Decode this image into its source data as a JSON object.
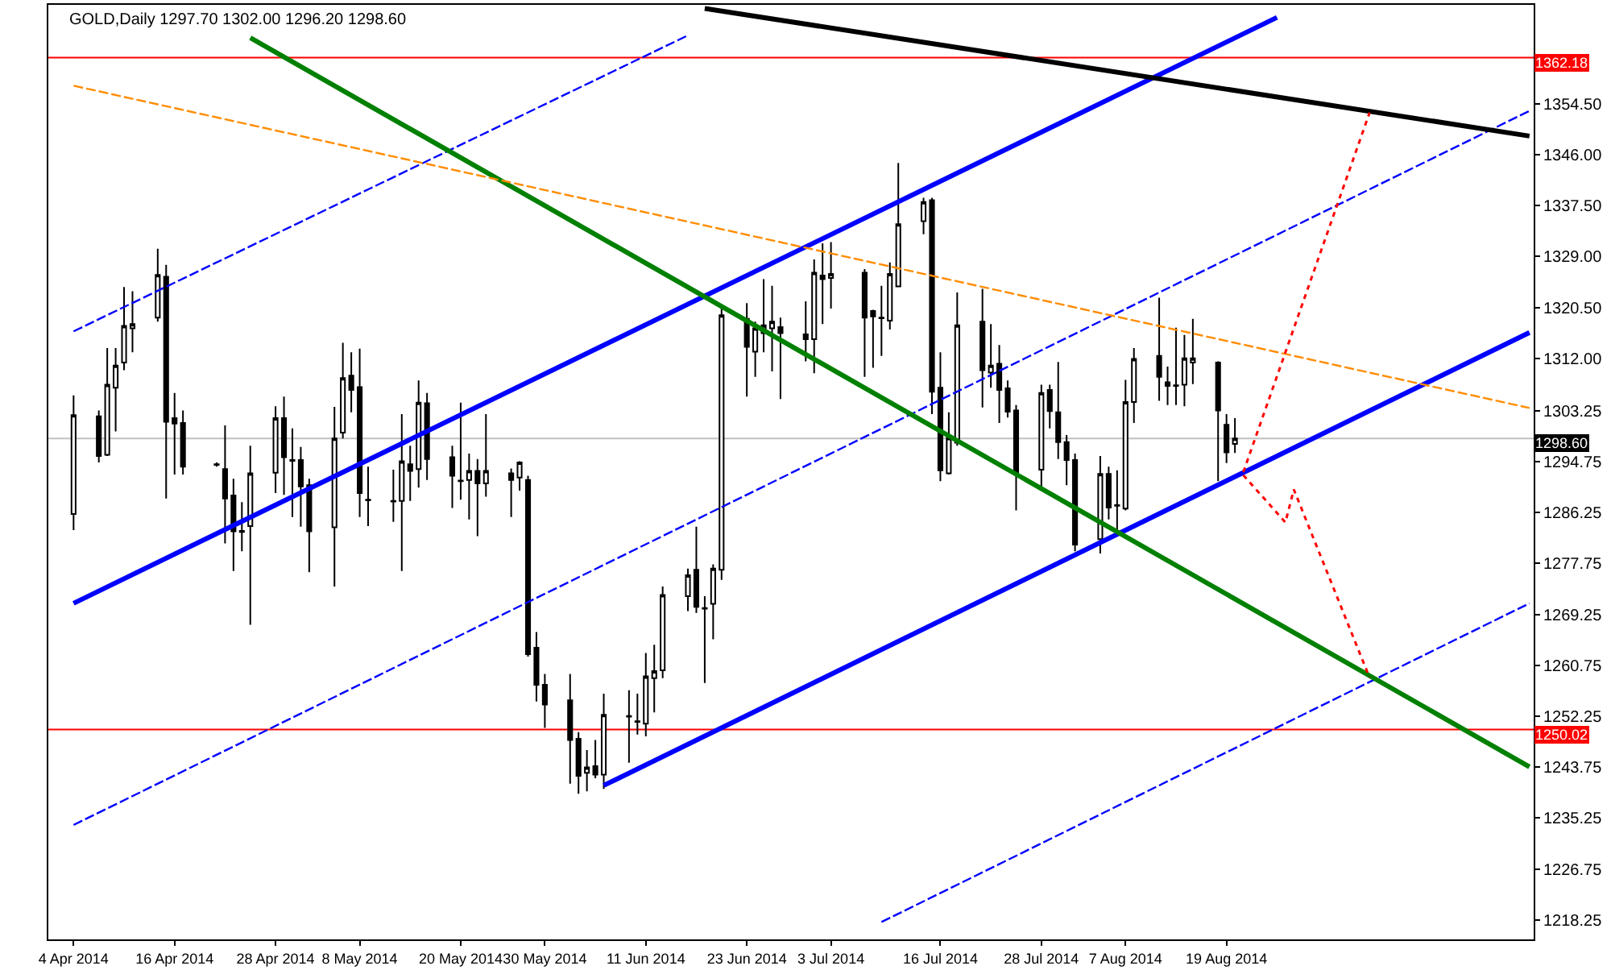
{
  "chart_data": {
    "type": "candlestick",
    "title": "GOLD,Daily 1297.70 1302.00 1296.20 1298.60",
    "x": [
      "2014-04-04",
      "2014-04-07",
      "2014-04-08",
      "2014-04-09",
      "2014-04-10",
      "2014-04-11",
      "2014-04-14",
      "2014-04-15",
      "2014-04-16",
      "2014-04-17",
      "2014-04-21",
      "2014-04-22",
      "2014-04-23",
      "2014-04-24",
      "2014-04-25",
      "2014-04-28",
      "2014-04-29",
      "2014-04-30",
      "2014-05-01",
      "2014-05-02",
      "2014-05-05",
      "2014-05-06",
      "2014-05-07",
      "2014-05-08",
      "2014-05-09",
      "2014-05-12",
      "2014-05-13",
      "2014-05-14",
      "2014-05-15",
      "2014-05-16",
      "2014-05-19",
      "2014-05-20",
      "2014-05-21",
      "2014-05-22",
      "2014-05-23",
      "2014-05-26",
      "2014-05-27",
      "2014-05-28",
      "2014-05-29",
      "2014-05-30",
      "2014-06-02",
      "2014-06-03",
      "2014-06-04",
      "2014-06-05",
      "2014-06-06",
      "2014-06-09",
      "2014-06-10",
      "2014-06-11",
      "2014-06-12",
      "2014-06-13",
      "2014-06-16",
      "2014-06-17",
      "2014-06-18",
      "2014-06-19",
      "2014-06-20",
      "2014-06-23",
      "2014-06-24",
      "2014-06-25",
      "2014-06-26",
      "2014-06-27",
      "2014-06-30",
      "2014-07-01",
      "2014-07-02",
      "2014-07-03",
      "2014-07-07",
      "2014-07-08",
      "2014-07-09",
      "2014-07-10",
      "2014-07-11",
      "2014-07-14",
      "2014-07-15",
      "2014-07-16",
      "2014-07-17",
      "2014-07-18",
      "2014-07-21",
      "2014-07-22",
      "2014-07-23",
      "2014-07-24",
      "2014-07-25",
      "2014-07-28",
      "2014-07-29",
      "2014-07-30",
      "2014-07-31",
      "2014-08-01",
      "2014-08-04",
      "2014-08-05",
      "2014-08-06",
      "2014-08-07",
      "2014-08-08",
      "2014-08-11",
      "2014-08-12",
      "2014-08-13",
      "2014-08-14",
      "2014-08-15",
      "2014-08-18",
      "2014-08-19",
      "2014-08-20"
    ],
    "ohlc": [
      [
        1286.0,
        1305.8,
        1283.3,
        1302.5
      ],
      [
        1302.3,
        1303.3,
        1294.6,
        1295.7
      ],
      [
        1295.9,
        1313.7,
        1295.7,
        1307.6
      ],
      [
        1307.1,
        1313.7,
        1299.8,
        1310.8
      ],
      [
        1311.3,
        1323.9,
        1310.0,
        1317.4
      ],
      [
        1317.0,
        1323.2,
        1313.0,
        1317.7
      ],
      [
        1318.8,
        1330.3,
        1318.1,
        1325.9
      ],
      [
        1325.6,
        1327.6,
        1288.6,
        1301.4
      ],
      [
        1302.0,
        1306.2,
        1292.6,
        1301.1
      ],
      [
        1301.2,
        1303.3,
        1292.6,
        1293.9
      ],
      [
        1294.2,
        1294.6,
        1293.9,
        1294.3
      ],
      [
        1293.5,
        1300.8,
        1281.1,
        1288.6
      ],
      [
        1289.1,
        1291.9,
        1276.5,
        1283.1
      ],
      [
        1283.2,
        1288.0,
        1279.8,
        1283.0
      ],
      [
        1284.0,
        1297.4,
        1267.5,
        1292.8
      ],
      [
        1292.9,
        1304.0,
        1289.5,
        1302.0
      ],
      [
        1302.0,
        1305.6,
        1289.2,
        1295.5
      ],
      [
        1295.0,
        1300.3,
        1285.5,
        1294.9
      ],
      [
        1295.0,
        1297.2,
        1283.9,
        1290.6
      ],
      [
        1290.8,
        1291.9,
        1276.3,
        1283.1
      ],
      [
        1283.8,
        1303.9,
        1273.9,
        1298.6
      ],
      [
        1299.6,
        1314.6,
        1298.6,
        1308.7
      ],
      [
        1309.1,
        1313.0,
        1303.0,
        1306.7
      ],
      [
        1307.2,
        1313.6,
        1285.5,
        1289.5
      ],
      [
        1288.4,
        1293.9,
        1284.0,
        1288.3
      ],
      [
        1288.2,
        1293.4,
        1284.7,
        1288.1
      ],
      [
        1288.2,
        1302.7,
        1276.5,
        1294.8
      ],
      [
        1294.3,
        1297.4,
        1288.2,
        1293.2
      ],
      [
        1293.5,
        1308.3,
        1290.4,
        1304.6
      ],
      [
        1304.5,
        1306.2,
        1291.7,
        1295.2
      ],
      [
        1295.5,
        1297.4,
        1287.0,
        1292.4
      ],
      [
        1291.6,
        1304.6,
        1288.4,
        1291.5
      ],
      [
        1291.7,
        1296.1,
        1285.1,
        1293.2
      ],
      [
        1293.2,
        1295.2,
        1282.3,
        1291.1
      ],
      [
        1291.1,
        1302.7,
        1288.9,
        1293.2
      ],
      [
        1292.8,
        1293.6,
        1285.5,
        1291.7
      ],
      [
        1292.1,
        1294.8,
        1289.9,
        1294.6
      ],
      [
        1291.7,
        1292.4,
        1262.2,
        1262.6
      ],
      [
        1263.7,
        1266.3,
        1254.7,
        1257.5
      ],
      [
        1257.5,
        1259.3,
        1250.3,
        1254.2
      ],
      [
        1254.9,
        1259.3,
        1241.0,
        1248.3
      ],
      [
        1248.5,
        1249.6,
        1239.3,
        1242.3
      ],
      [
        1242.8,
        1246.6,
        1239.7,
        1243.7
      ],
      [
        1243.9,
        1248.3,
        1241.9,
        1242.5
      ],
      [
        1242.5,
        1256.0,
        1240.1,
        1252.5
      ],
      [
        1252.3,
        1256.6,
        1244.5,
        1252.2
      ],
      [
        1251.4,
        1256.0,
        1249.2,
        1251.3
      ],
      [
        1251.0,
        1262.8,
        1248.9,
        1258.9
      ],
      [
        1258.6,
        1264.2,
        1252.9,
        1259.8
      ],
      [
        1259.9,
        1273.9,
        1258.6,
        1272.5
      ],
      [
        1272.3,
        1276.9,
        1269.8,
        1275.8
      ],
      [
        1276.7,
        1283.9,
        1269.5,
        1270.5
      ],
      [
        1270.3,
        1272.3,
        1257.8,
        1270.2
      ],
      [
        1271.0,
        1277.6,
        1265.1,
        1276.9
      ],
      [
        1276.7,
        1320.9,
        1275.0,
        1319.2
      ],
      [
        1318.6,
        1321.2,
        1305.6,
        1313.9
      ],
      [
        1313.1,
        1318.1,
        1308.9,
        1317.0
      ],
      [
        1316.2,
        1325.2,
        1313.0,
        1317.5
      ],
      [
        1317.0,
        1324.1,
        1309.8,
        1318.1
      ],
      [
        1317.2,
        1318.8,
        1305.2,
        1316.2
      ],
      [
        1316.0,
        1321.5,
        1311.5,
        1315.2
      ],
      [
        1315.2,
        1328.5,
        1309.5,
        1326.3
      ],
      [
        1325.8,
        1331.2,
        1317.7,
        1325.2
      ],
      [
        1325.4,
        1331.4,
        1320.3,
        1326.1
      ],
      [
        1326.3,
        1326.9,
        1308.9,
        1318.8
      ],
      [
        1319.9,
        1320.1,
        1310.4,
        1319.0
      ],
      [
        1318.8,
        1324.1,
        1312.4,
        1318.7
      ],
      [
        1318.3,
        1328.0,
        1316.8,
        1326.1
      ],
      [
        1324.0,
        1344.6,
        1323.9,
        1334.4
      ],
      [
        1334.9,
        1338.8,
        1332.7,
        1338.1
      ],
      [
        1338.4,
        1338.8,
        1302.7,
        1306.4
      ],
      [
        1307.1,
        1313.0,
        1291.5,
        1293.3
      ],
      [
        1292.8,
        1303.0,
        1292.6,
        1298.7
      ],
      [
        1297.9,
        1323.0,
        1297.4,
        1317.5
      ],
      [
        1318.1,
        1323.6,
        1303.8,
        1310.0
      ],
      [
        1309.6,
        1317.7,
        1307.1,
        1310.8
      ],
      [
        1311.1,
        1314.2,
        1301.2,
        1306.7
      ],
      [
        1307.0,
        1308.3,
        1302.1,
        1303.1
      ],
      [
        1303.3,
        1304.2,
        1286.6,
        1293.0
      ],
      [
        1293.4,
        1307.6,
        1289.9,
        1306.2
      ],
      [
        1306.7,
        1307.6,
        1300.3,
        1303.2
      ],
      [
        1303.0,
        1311.4,
        1295.2,
        1298.0
      ],
      [
        1298.0,
        1299.2,
        1290.8,
        1295.0
      ],
      [
        1295.0,
        1296.1,
        1279.8,
        1280.9
      ],
      [
        1281.8,
        1295.7,
        1279.4,
        1292.7
      ],
      [
        1292.7,
        1293.9,
        1285.1,
        1287.1
      ],
      [
        1287.5,
        1293.3,
        1282.9,
        1287.4
      ],
      [
        1286.9,
        1308.4,
        1286.6,
        1304.7
      ],
      [
        1304.7,
        1313.7,
        1301.2,
        1311.9
      ],
      [
        1312.4,
        1322.1,
        1304.9,
        1308.9
      ],
      [
        1308.0,
        1310.6,
        1304.2,
        1307.4
      ],
      [
        1307.5,
        1317.1,
        1304.2,
        1307.4
      ],
      [
        1307.6,
        1315.9,
        1304.0,
        1312.0
      ],
      [
        1311.3,
        1318.6,
        1307.7,
        1312.0
      ],
      [
        1311.3,
        1311.5,
        1291.5,
        1303.3
      ],
      [
        1300.9,
        1302.7,
        1294.5,
        1296.3
      ],
      [
        1297.7,
        1302.0,
        1296.2,
        1298.6
      ]
    ],
    "series": [
      {
        "type": "line",
        "color": "#0000ff",
        "line_style": "solid",
        "x": [
          "2014-04-04",
          "2014-08-25"
        ],
        "values": [
          1271.1,
          1368.9
        ]
      },
      {
        "type": "line",
        "color": "#0000ff",
        "line_style": "solid",
        "x": [
          "2014-06-06",
          "2014-09-24"
        ],
        "values": [
          1240.7,
          1316.3
        ]
      },
      {
        "type": "line",
        "color": "#0000ff",
        "line_style": "dashed",
        "x": [
          "2014-04-04",
          "2014-06-16"
        ],
        "values": [
          1316.5,
          1365.9
        ]
      },
      {
        "type": "line",
        "color": "#0000ff",
        "line_style": "dashed",
        "x": [
          "2014-04-04",
          "2014-09-24"
        ],
        "values": [
          1234.1,
          1353.3
        ]
      },
      {
        "type": "line",
        "color": "#0000ff",
        "line_style": "dashed",
        "x": [
          "2014-07-09",
          "2014-09-24"
        ],
        "values": [
          1217.9,
          1271.1
        ]
      },
      {
        "type": "line",
        "color": "#008000",
        "line_style": "solid",
        "x": [
          "2014-04-25",
          "2014-09-24"
        ],
        "values": [
          1365.5,
          1243.8
        ]
      },
      {
        "type": "line",
        "color": "#000000",
        "line_style": "solid",
        "x": [
          "2014-06-18",
          "2014-09-24"
        ],
        "values": [
          1370.4,
          1349.1
        ]
      },
      {
        "type": "line",
        "color": "#ff8c00",
        "line_style": "dashed",
        "x": [
          "2014-04-04",
          "2014-09-24"
        ],
        "values": [
          1357.5,
          1303.7
        ]
      },
      {
        "type": "line",
        "color": "#ff0000",
        "line_style": "dotted",
        "x": [
          "2014-08-21",
          "2014-09-05"
        ],
        "values": [
          1293.0,
          1353.0
        ]
      },
      {
        "type": "line",
        "color": "#ff0000",
        "line_style": "dotted",
        "x": [
          "2014-08-21",
          "2014-08-26",
          "2014-08-27",
          "2014-09-05"
        ],
        "values": [
          1292.5,
          1284.6,
          1290.1,
          1258.7
        ]
      }
    ],
    "ref_lines": [
      {
        "axis": "y",
        "value": 1362.18,
        "label": "1362.18",
        "color": "#ff0000"
      },
      {
        "axis": "y",
        "value": 1250.02,
        "label": "1250.02",
        "color": "#ff0000"
      },
      {
        "axis": "y",
        "value": 1298.6,
        "label": "1298.60",
        "color": "#c0c0c0"
      }
    ],
    "xlim": [
      "2014-04-01",
      "2014-09-24T12:00"
    ],
    "xticks": [
      {
        "value": "2014-04-04",
        "label": "4 Apr 2014"
      },
      {
        "value": "2014-04-16",
        "label": "16 Apr 2014"
      },
      {
        "value": "2014-04-28",
        "label": "28 Apr 2014"
      },
      {
        "value": "2014-05-08",
        "label": "8 May 2014"
      },
      {
        "value": "2014-05-20",
        "label": "20 May 2014"
      },
      {
        "value": "2014-05-30",
        "label": "30 May 2014"
      },
      {
        "value": "2014-06-11",
        "label": "11 Jun 2014"
      },
      {
        "value": "2014-06-23",
        "label": "23 Jun 2014"
      },
      {
        "value": "2014-07-03",
        "label": "3 Jul 2014"
      },
      {
        "value": "2014-07-16",
        "label": "16 Jul 2014"
      },
      {
        "value": "2014-07-28",
        "label": "28 Jul 2014"
      },
      {
        "value": "2014-08-07",
        "label": "7 Aug 2014"
      },
      {
        "value": "2014-08-19",
        "label": "19 Aug 2014"
      }
    ],
    "ylim": [
      1215.0,
      1371.0
    ],
    "yticks": [
      {
        "value": 1354.5,
        "label": "1354.50"
      },
      {
        "value": 1346,
        "label": "1346.00"
      },
      {
        "value": 1337.5,
        "label": "1337.50"
      },
      {
        "value": 1329,
        "label": "1329.00"
      },
      {
        "value": 1320.5,
        "label": "1320.50"
      },
      {
        "value": 1312,
        "label": "1312.00"
      },
      {
        "value": 1303.25,
        "label": "1303.25"
      },
      {
        "value": 1294.75,
        "label": "1294.75"
      },
      {
        "value": 1286.25,
        "label": "1286.25"
      },
      {
        "value": 1277.75,
        "label": "1277.75"
      },
      {
        "value": 1269.25,
        "label": "1269.25"
      },
      {
        "value": 1260.75,
        "label": "1260.75"
      },
      {
        "value": 1252.25,
        "label": "1252.25"
      },
      {
        "value": 1243.75,
        "label": "1243.75"
      },
      {
        "value": 1235.25,
        "label": "1235.25"
      },
      {
        "value": 1226.75,
        "label": "1226.75"
      },
      {
        "value": 1218.25,
        "label": "1218.25"
      }
    ],
    "grid": false
  }
}
